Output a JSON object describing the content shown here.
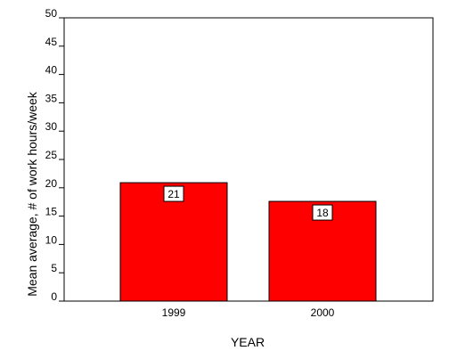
{
  "chart_data": {
    "type": "bar",
    "categories": [
      "1999",
      "2000"
    ],
    "values": [
      21,
      18
    ],
    "bar_heights": [
      20.9,
      17.6
    ],
    "title": "",
    "xlabel": "YEAR",
    "ylabel": "Mean average, # of work hours/week",
    "ylim": [
      0,
      50
    ],
    "yticks": [
      0,
      5,
      10,
      15,
      20,
      25,
      30,
      35,
      40,
      45,
      50
    ],
    "bar_color": "#ff0000",
    "grid": false,
    "legend": "none"
  }
}
